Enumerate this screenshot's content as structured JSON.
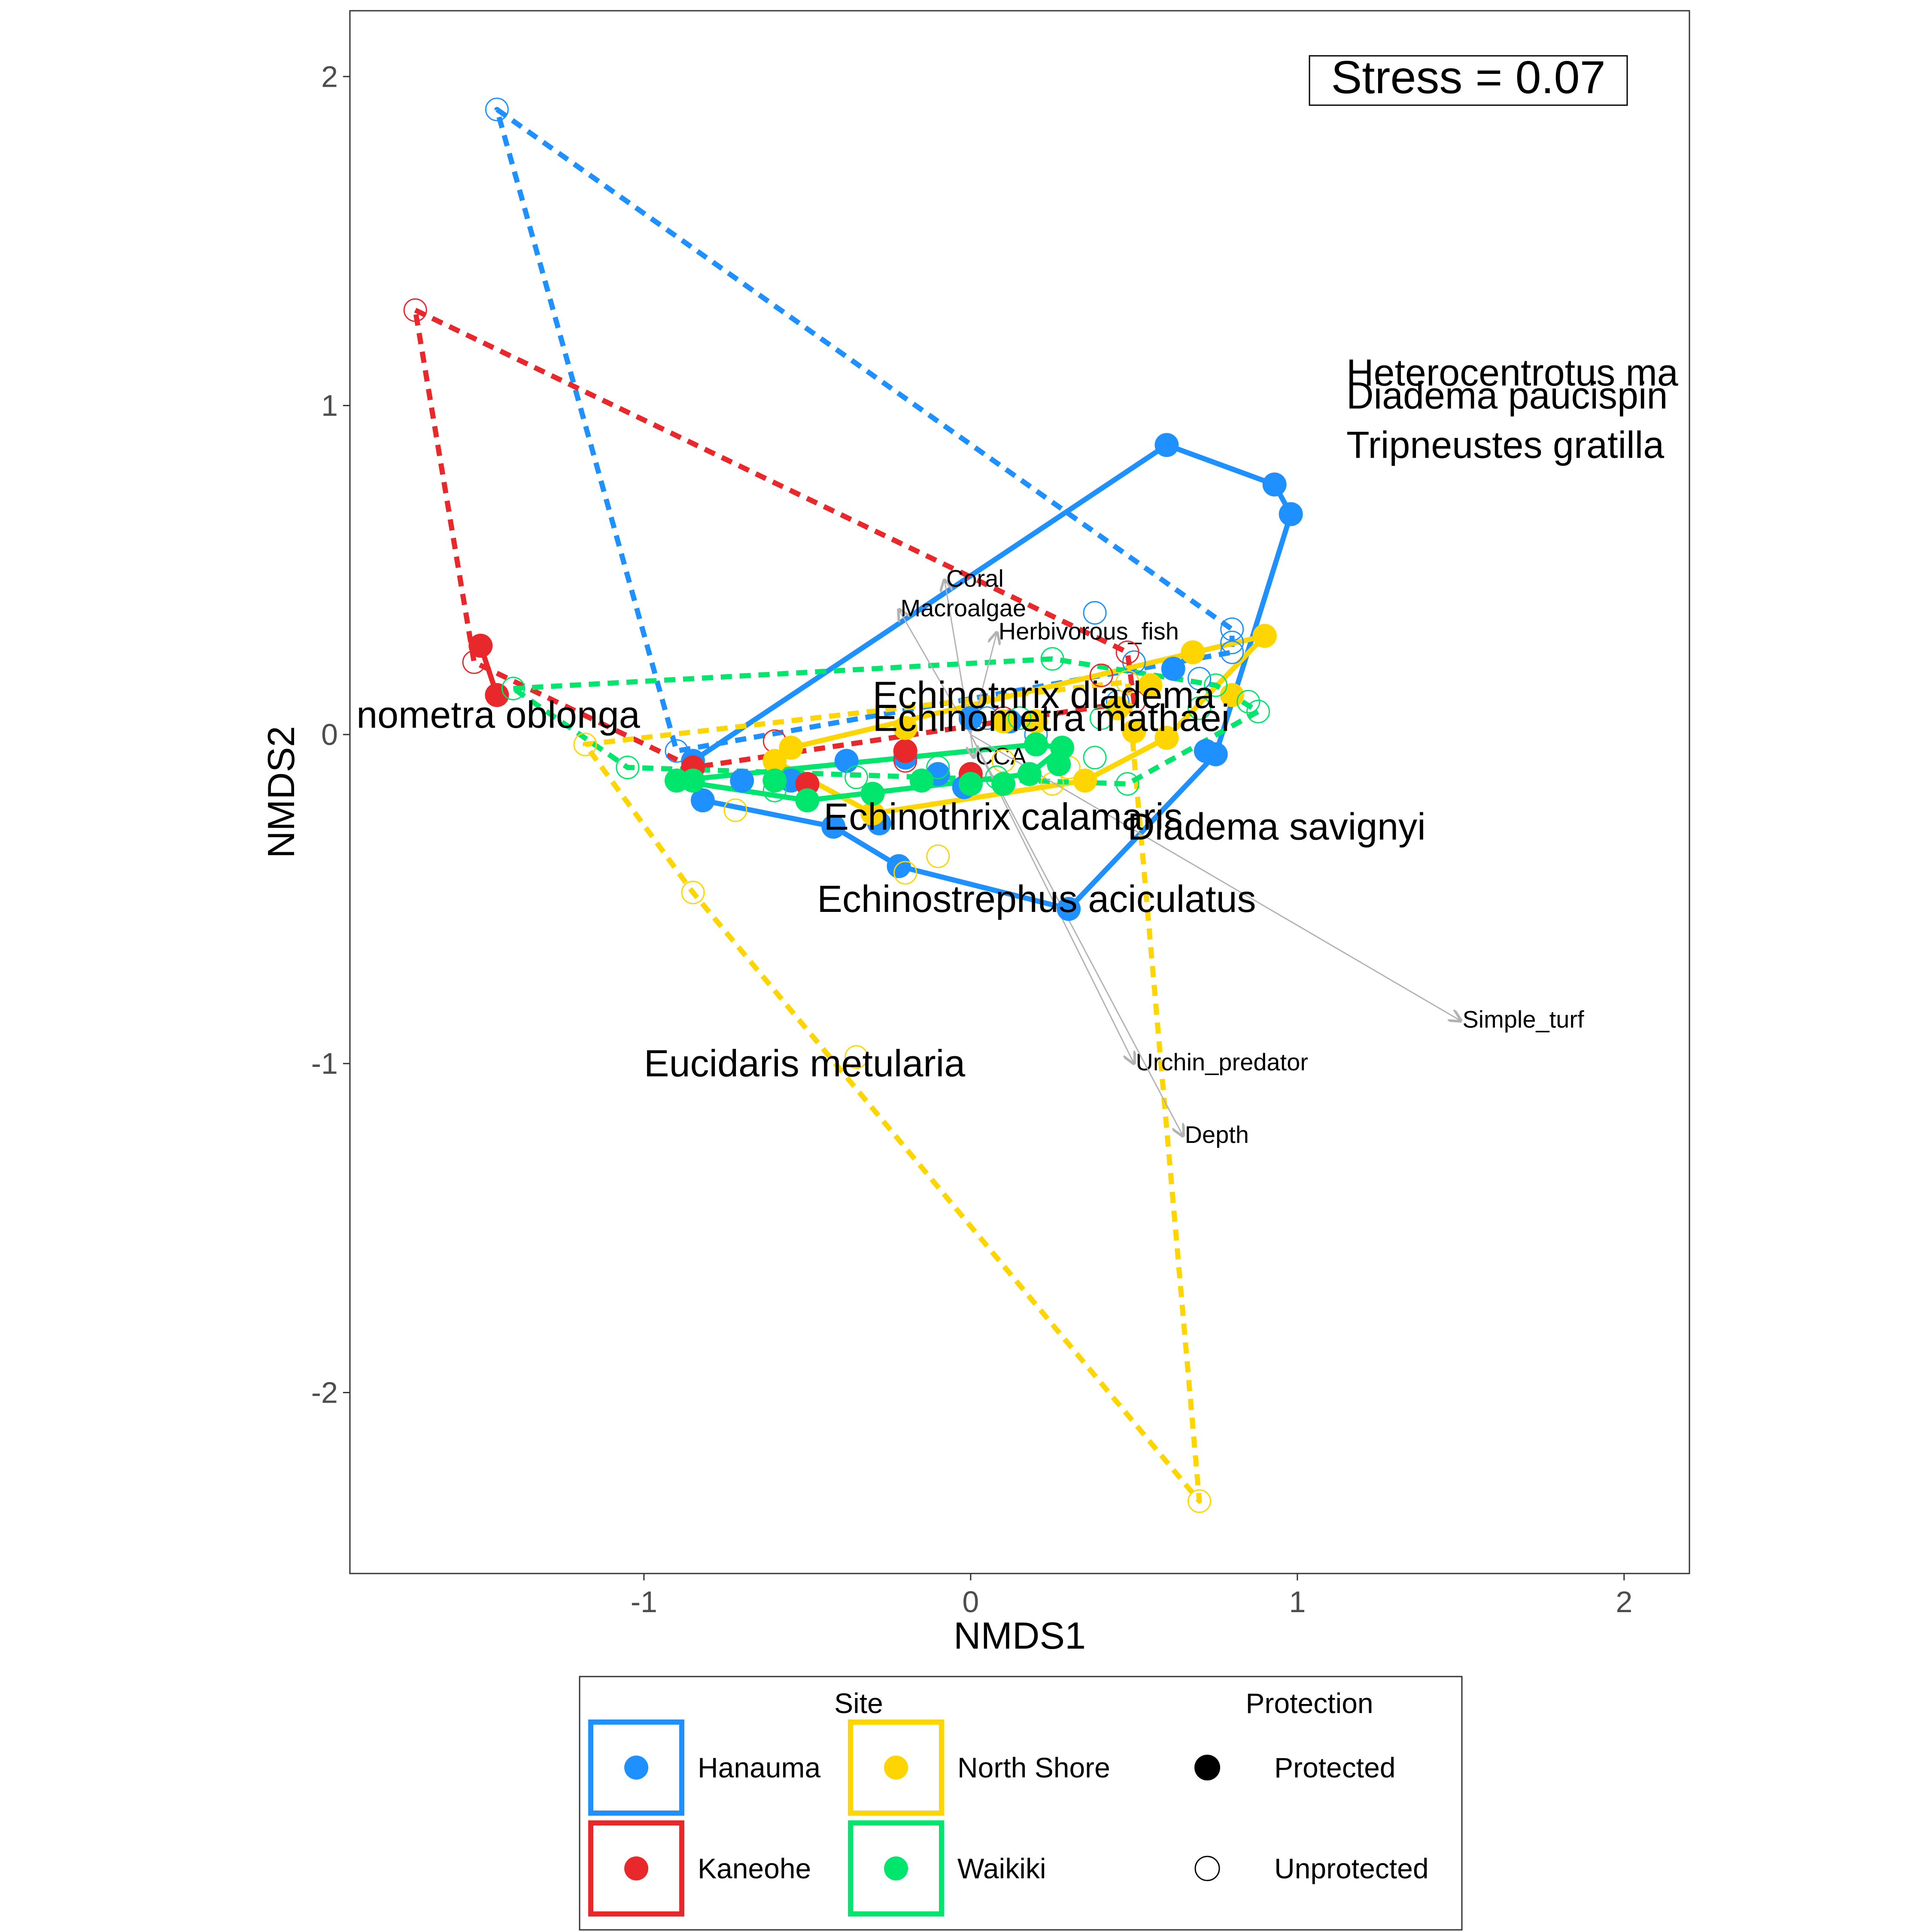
{
  "chart_data": {
    "type": "scatter",
    "xlabel": "NMDS1",
    "ylabel": "NMDS2",
    "xlim": [
      -1.9,
      2.2
    ],
    "ylim": [
      -2.55,
      2.2
    ],
    "xticks": [
      -1,
      0,
      1,
      2
    ],
    "yticks": [
      -2,
      -1,
      0,
      1,
      2
    ],
    "stress_label": "Stress = 0.07",
    "grid": false,
    "colors": {
      "Hanauma": "#1E90FF",
      "Kaneohe": "#E8282B",
      "North Shore": "#FFD500",
      "Waikiki": "#00E56B",
      "arrow": "#B3B3B3"
    },
    "sites": [
      {
        "name": "Hanauma",
        "protected": [
          [
            -0.85,
            -0.08
          ],
          [
            -0.82,
            -0.2
          ],
          [
            -0.7,
            -0.14
          ],
          [
            -0.55,
            -0.14
          ],
          [
            -0.42,
            -0.28
          ],
          [
            -0.38,
            -0.08
          ],
          [
            -0.28,
            -0.27
          ],
          [
            -0.22,
            -0.4
          ],
          [
            -0.2,
            -0.07
          ],
          [
            -0.1,
            -0.12
          ],
          [
            0.0,
            0.05
          ],
          [
            0.3,
            -0.53
          ],
          [
            0.6,
            0.88
          ],
          [
            0.72,
            -0.05
          ],
          [
            0.75,
            -0.06
          ],
          [
            0.93,
            0.76
          ],
          [
            0.98,
            0.67
          ],
          [
            0.62,
            0.2
          ],
          [
            -0.02,
            -0.16
          ],
          [
            0.12,
            0.04
          ]
        ],
        "protected_hull": [
          [
            -0.85,
            -0.08
          ],
          [
            0.6,
            0.88
          ],
          [
            0.93,
            0.76
          ],
          [
            0.98,
            0.67
          ],
          [
            0.75,
            -0.06
          ],
          [
            0.3,
            -0.53
          ],
          [
            -0.22,
            -0.4
          ],
          [
            -0.42,
            -0.28
          ],
          [
            -0.82,
            -0.2
          ]
        ],
        "unprotected": [
          [
            -1.45,
            1.9
          ],
          [
            -0.9,
            -0.05
          ],
          [
            0.38,
            0.37
          ],
          [
            0.8,
            0.32
          ],
          [
            0.8,
            0.28
          ],
          [
            0.8,
            0.25
          ],
          [
            0.5,
            0.22
          ],
          [
            0.7,
            0.17
          ],
          [
            -0.2,
            -0.05
          ],
          [
            0.05,
            0.05
          ],
          [
            0.2,
            0.0
          ],
          [
            0.45,
            0.1
          ]
        ],
        "unprotected_hull": [
          [
            -1.45,
            1.9
          ],
          [
            0.8,
            0.32
          ],
          [
            0.8,
            0.25
          ],
          [
            -0.9,
            -0.05
          ]
        ]
      },
      {
        "name": "Kaneohe",
        "protected": [
          [
            -1.5,
            0.27
          ],
          [
            -1.45,
            0.12
          ],
          [
            -0.85,
            -0.1
          ],
          [
            -0.5,
            -0.15
          ],
          [
            -0.2,
            -0.05
          ],
          [
            0.0,
            -0.12
          ]
        ],
        "protected_hull": [
          [
            -1.5,
            0.27
          ],
          [
            -1.45,
            0.12
          ]
        ],
        "unprotected": [
          [
            -1.7,
            1.29
          ],
          [
            -1.52,
            0.22
          ],
          [
            -0.6,
            -0.02
          ],
          [
            -0.2,
            -0.08
          ],
          [
            0.1,
            0.05
          ],
          [
            0.4,
            0.18
          ],
          [
            0.48,
            0.25
          ],
          [
            0.5,
            0.1
          ]
        ],
        "unprotected_hull": [
          [
            -1.7,
            1.29
          ],
          [
            0.48,
            0.25
          ],
          [
            0.5,
            0.1
          ],
          [
            -0.85,
            -0.1
          ],
          [
            -1.52,
            0.22
          ]
        ]
      },
      {
        "name": "North Shore",
        "protected": [
          [
            -0.55,
            -0.04
          ],
          [
            -0.6,
            -0.08
          ],
          [
            -0.3,
            -0.24
          ],
          [
            -0.2,
            0.02
          ],
          [
            0.1,
            0.04
          ],
          [
            0.2,
            0.04
          ],
          [
            0.35,
            -0.14
          ],
          [
            0.5,
            0.01
          ],
          [
            0.55,
            0.15
          ],
          [
            0.6,
            -0.01
          ],
          [
            0.68,
            0.25
          ],
          [
            0.9,
            0.3
          ],
          [
            0.8,
            0.12
          ],
          [
            0.45,
            0.08
          ]
        ],
        "protected_hull": [
          [
            -0.55,
            -0.04
          ],
          [
            0.9,
            0.3
          ],
          [
            0.6,
            -0.01
          ],
          [
            0.35,
            -0.14
          ],
          [
            -0.3,
            -0.24
          ],
          [
            -0.6,
            -0.08
          ]
        ],
        "unprotected": [
          [
            -1.18,
            -0.03
          ],
          [
            -0.85,
            -0.48
          ],
          [
            -0.72,
            -0.23
          ],
          [
            -0.35,
            -0.98
          ],
          [
            -0.1,
            -0.37
          ],
          [
            -0.2,
            -0.42
          ],
          [
            0.7,
            -2.33
          ],
          [
            0.48,
            0.16
          ],
          [
            0.3,
            -0.1
          ],
          [
            0.1,
            -0.08
          ],
          [
            0.25,
            -0.15
          ]
        ],
        "unprotected_hull": [
          [
            -1.18,
            -0.03
          ],
          [
            0.48,
            0.16
          ],
          [
            0.7,
            -2.33
          ],
          [
            -0.85,
            -0.48
          ]
        ]
      },
      {
        "name": "Waikiki",
        "protected": [
          [
            -0.9,
            -0.14
          ],
          [
            -0.85,
            -0.14
          ],
          [
            -0.6,
            -0.14
          ],
          [
            -0.5,
            -0.2
          ],
          [
            -0.3,
            -0.18
          ],
          [
            -0.15,
            -0.14
          ],
          [
            0.0,
            -0.15
          ],
          [
            0.1,
            -0.15
          ],
          [
            0.18,
            -0.12
          ],
          [
            0.2,
            -0.03
          ],
          [
            0.28,
            -0.04
          ],
          [
            0.27,
            -0.09
          ]
        ],
        "protected_hull": [
          [
            -0.9,
            -0.14
          ],
          [
            0.2,
            -0.03
          ],
          [
            0.28,
            -0.04
          ],
          [
            0.18,
            -0.12
          ],
          [
            -0.5,
            -0.2
          ]
        ],
        "unprotected": [
          [
            -1.4,
            0.14
          ],
          [
            -1.05,
            -0.1
          ],
          [
            -0.6,
            -0.17
          ],
          [
            -0.35,
            -0.13
          ],
          [
            -0.1,
            -0.1
          ],
          [
            0.08,
            -0.13
          ],
          [
            0.25,
            0.23
          ],
          [
            0.38,
            -0.07
          ],
          [
            0.48,
            -0.15
          ],
          [
            0.7,
            0.08
          ],
          [
            0.75,
            0.15
          ],
          [
            0.85,
            0.1
          ],
          [
            0.88,
            0.07
          ],
          [
            0.4,
            0.05
          ],
          [
            0.15,
            0.05
          ]
        ],
        "unprotected_hull": [
          [
            -1.4,
            0.14
          ],
          [
            0.25,
            0.23
          ],
          [
            0.75,
            0.15
          ],
          [
            0.88,
            0.07
          ],
          [
            0.48,
            -0.15
          ],
          [
            -1.05,
            -0.1
          ]
        ]
      }
    ],
    "vectors": [
      {
        "label": "Coral",
        "end": [
          -0.08,
          0.47
        ]
      },
      {
        "label": "Macroalgae",
        "end": [
          -0.22,
          0.38
        ]
      },
      {
        "label": "Herbivorous_fish",
        "end": [
          0.08,
          0.31
        ]
      },
      {
        "label": "CCA",
        "end": [
          0.01,
          -0.07
        ]
      },
      {
        "label": "Simple_turf",
        "end": [
          1.5,
          -0.87
        ]
      },
      {
        "label": "Urchin_predator",
        "end": [
          0.5,
          -1.0
        ]
      },
      {
        "label": "Depth",
        "end": [
          0.65,
          -1.22
        ]
      }
    ],
    "species": [
      {
        "label": "Heterocentrotus ma",
        "at": [
          1.15,
          1.1
        ]
      },
      {
        "label": "Diadema paucispin",
        "at": [
          1.15,
          1.03
        ]
      },
      {
        "label": "Tripneustes gratilla",
        "at": [
          1.15,
          0.88
        ]
      },
      {
        "label": "Echinotnrix diadema",
        "at": [
          -0.3,
          0.12
        ]
      },
      {
        "label": "Echinometra mathaei",
        "at": [
          -0.3,
          0.05
        ]
      },
      {
        "label": "nometra oblonga",
        "at": [
          -1.88,
          0.06
        ]
      },
      {
        "label": "Echinothrix calamaris",
        "at": [
          -0.45,
          -0.25
        ]
      },
      {
        "label": "Diadema savignyi",
        "at": [
          0.48,
          -0.28
        ]
      },
      {
        "label": "Echinostrephus aciculatus",
        "at": [
          -0.47,
          -0.5
        ]
      },
      {
        "label": "Eucidaris metularia",
        "at": [
          -1.0,
          -1.0
        ]
      }
    ],
    "legend": {
      "site_title": "Site",
      "protection_title": "Protection",
      "site_items": [
        "Hanauma",
        "Kaneohe",
        "North Shore",
        "Waikiki"
      ],
      "protection_items": [
        "Protected",
        "Unprotected"
      ],
      "placement": "bottom"
    }
  }
}
